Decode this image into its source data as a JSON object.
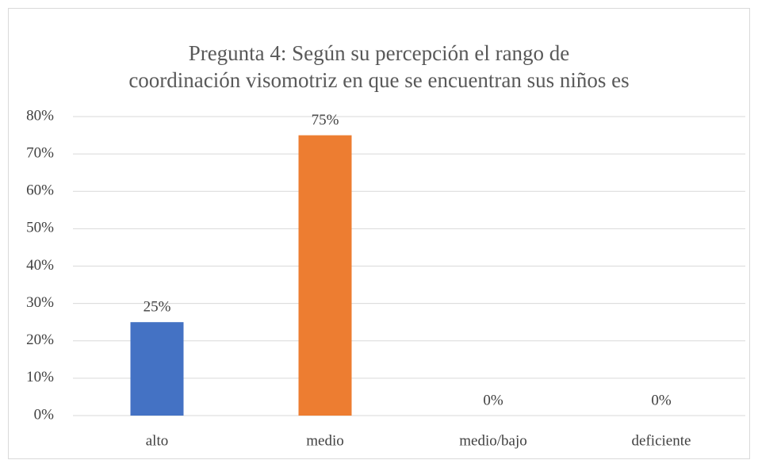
{
  "chart_data": {
    "type": "bar",
    "title": "Pregunta 4: Según su percepción el rango de\ncoordinación visomotriz en que se encuentran sus niños es",
    "categories": [
      "alto",
      "medio",
      "medio/bajo",
      "deficiente"
    ],
    "values": [
      25,
      75,
      0,
      0
    ],
    "value_labels": [
      "25%",
      "75%",
      "0%",
      "0%"
    ],
    "colors": [
      "#4472c4",
      "#ed7d31",
      "#a5a5a5",
      "#ffc000"
    ],
    "ylim": [
      0,
      80
    ],
    "yticks": [
      {
        "value": 0,
        "label": "0%"
      },
      {
        "value": 10,
        "label": "10%"
      },
      {
        "value": 20,
        "label": "20%"
      },
      {
        "value": 30,
        "label": "30%"
      },
      {
        "value": 40,
        "label": "40%"
      },
      {
        "value": 50,
        "label": "50%"
      },
      {
        "value": 60,
        "label": "60%"
      },
      {
        "value": 70,
        "label": "70%"
      },
      {
        "value": 80,
        "label": "80%"
      }
    ],
    "grid": true
  }
}
